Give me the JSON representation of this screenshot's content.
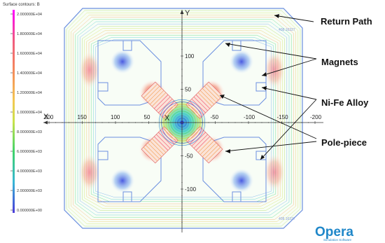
{
  "legend": {
    "title": "Surface contours: B",
    "ticks": [
      "2.000000E+04",
      "1.800000E+04",
      "1.600000E+04",
      "1.400000E+04",
      "1.200000E+04",
      "1.000000E+04",
      "8.000000E+03",
      "6.000000E+03",
      "4.000000E+03",
      "2.000000E+03",
      "0.000000E+00"
    ],
    "colors": [
      "#ff00ff",
      "#e84a9c",
      "#f06a6a",
      "#f48a5a",
      "#f3b352",
      "#e9e24a",
      "#9ed84a",
      "#3ed36a",
      "#38c6c6",
      "#5aa0e8",
      "#4a3ad8"
    ]
  },
  "axes": {
    "x_name": "X",
    "y_name": "Y",
    "x_ticks": [
      "200",
      "150",
      "100",
      "50",
      "-50",
      "-100",
      "-150",
      "-200"
    ],
    "y_ticks": [
      "100",
      "50",
      "-50",
      "-100"
    ],
    "faint_labels": [
      "408.16327",
      "408.16327"
    ]
  },
  "callouts": [
    "Return Path",
    "Magnets",
    "Ni-Fe Alloy",
    "Pole-piece"
  ],
  "logo": {
    "name": "Opera",
    "tagline": "Simulation Software"
  }
}
